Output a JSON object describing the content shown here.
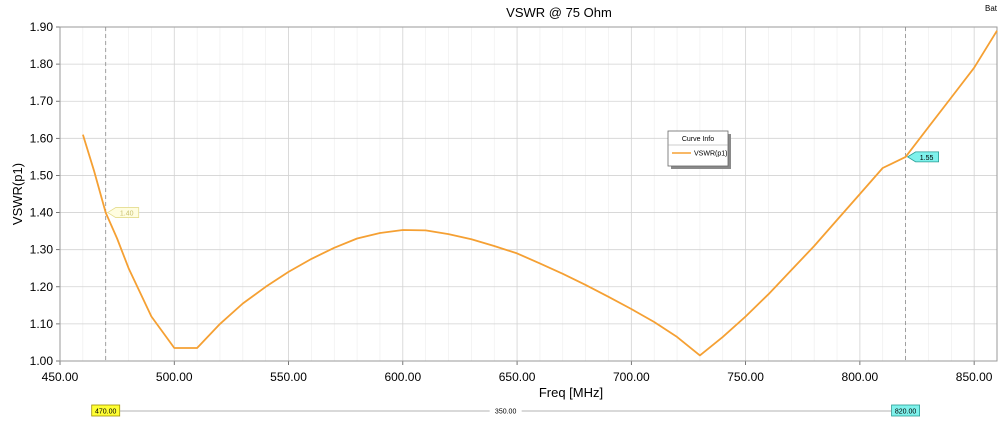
{
  "chart_data": {
    "type": "line",
    "title": "VSWR @ 75 Ohm",
    "corner_label": "Bat",
    "xlabel": "Freq [MHz]",
    "ylabel": "VSWR(p1)",
    "xlim": [
      450,
      860
    ],
    "ylim": [
      1.0,
      1.9
    ],
    "x_ticks": [
      450,
      500,
      550,
      600,
      650,
      700,
      750,
      800,
      850
    ],
    "x_tick_labels": [
      "450.00",
      "500.00",
      "550.00",
      "600.00",
      "650.00",
      "700.00",
      "750.00",
      "800.00",
      "850.00"
    ],
    "y_ticks": [
      1.0,
      1.1,
      1.2,
      1.3,
      1.4,
      1.5,
      1.6,
      1.7,
      1.8,
      1.9
    ],
    "y_tick_labels": [
      "1.00",
      "1.10",
      "1.20",
      "1.30",
      "1.40",
      "1.50",
      "1.60",
      "1.70",
      "1.80",
      "1.90"
    ],
    "grid": true,
    "legend": {
      "title": "Curve Info",
      "placement": "center-right",
      "entries": [
        "VSWR(p1)"
      ]
    },
    "series": [
      {
        "name": "VSWR(p1)",
        "color": "#f5a033",
        "x": [
          460,
          465,
          470,
          475,
          480,
          490,
          500,
          510,
          520,
          530,
          540,
          550,
          560,
          570,
          580,
          590,
          600,
          610,
          620,
          630,
          640,
          650,
          660,
          670,
          680,
          690,
          700,
          710,
          720,
          730,
          740,
          750,
          760,
          770,
          780,
          790,
          800,
          810,
          820,
          830,
          840,
          850,
          860
        ],
        "y": [
          1.61,
          1.51,
          1.4,
          1.33,
          1.25,
          1.12,
          1.035,
          1.035,
          1.1,
          1.155,
          1.2,
          1.24,
          1.275,
          1.305,
          1.33,
          1.345,
          1.353,
          1.352,
          1.342,
          1.328,
          1.31,
          1.29,
          1.263,
          1.235,
          1.205,
          1.173,
          1.14,
          1.105,
          1.065,
          1.015,
          1.065,
          1.12,
          1.18,
          1.245,
          1.31,
          1.38,
          1.45,
          1.52,
          1.55,
          1.63,
          1.71,
          1.79,
          1.89
        ]
      }
    ],
    "markers": [
      {
        "x": 470,
        "y_label": "1.40",
        "x_label": "470.00"
      },
      {
        "x": 820,
        "y_label": "1.55",
        "x_label": "820.00"
      }
    ],
    "marker_span_label": "350.00"
  }
}
